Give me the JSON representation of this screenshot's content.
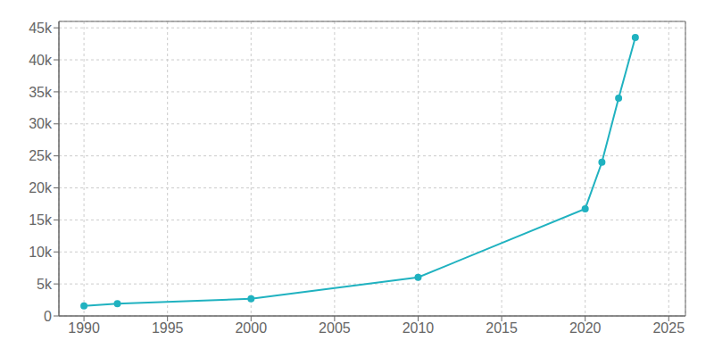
{
  "chart_data": {
    "type": "line",
    "x": [
      1990,
      1992,
      2000,
      2010,
      2020,
      2021,
      2022,
      2023
    ],
    "values": [
      1580,
      1914,
      2672,
      6028,
      16739,
      24000,
      34000,
      43500
    ],
    "color": "#20B2C0",
    "marker": "circle",
    "xlim": [
      1988.5,
      2026
    ],
    "ylim": [
      0,
      46000
    ],
    "xticks": [
      1990,
      1995,
      2000,
      2005,
      2010,
      2015,
      2020,
      2025
    ],
    "yticks": [
      0,
      {
        "value": 5000,
        "label": "5k"
      },
      {
        "value": 10000,
        "label": "10k"
      },
      {
        "value": 15000,
        "label": "15k"
      },
      {
        "value": 20000,
        "label": "20k"
      },
      {
        "value": 25000,
        "label": "25k"
      },
      {
        "value": 30000,
        "label": "30k"
      },
      {
        "value": 35000,
        "label": "35k"
      },
      {
        "value": 40000,
        "label": "40k"
      },
      {
        "value": 45000,
        "label": "45k"
      }
    ],
    "grid": true
  }
}
